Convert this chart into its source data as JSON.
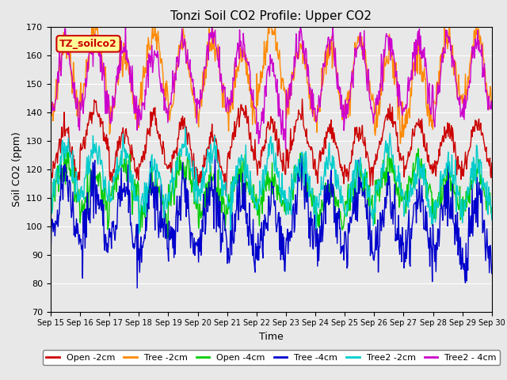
{
  "title": "Tonzi Soil CO2 Profile: Upper CO2",
  "xlabel": "Time",
  "ylabel": "Soil CO2 (ppm)",
  "ylim": [
    70,
    170
  ],
  "yticks": [
    70,
    80,
    90,
    100,
    110,
    120,
    130,
    140,
    150,
    160,
    170
  ],
  "annotation": "TZ_soilco2",
  "background_color": "#e8e8e8",
  "plot_bg": "#e8e8e8",
  "legend": [
    "Open -2cm",
    "Tree -2cm",
    "Open -4cm",
    "Tree -4cm",
    "Tree2 -2cm",
    "Tree2 - 4cm"
  ],
  "colors": [
    "#cc0000",
    "#ff8800",
    "#00cc00",
    "#0000cc",
    "#00cccc",
    "#cc00cc"
  ],
  "n_days": 15,
  "n_per_day": 48,
  "means": [
    128,
    152,
    113,
    103,
    116,
    152
  ],
  "amplitudes": [
    8,
    12,
    6,
    10,
    8,
    12
  ],
  "noise_scales": [
    2,
    3,
    3,
    5,
    3,
    3
  ],
  "x_tick_labels": [
    "Sep 15",
    "Sep 16",
    "Sep 17",
    "Sep 18",
    "Sep 19",
    "Sep 20",
    "Sep 21",
    "Sep 22",
    "Sep 23",
    "Sep 24",
    "Sep 25",
    "Sep 26",
    "Sep 27",
    "Sep 28",
    "Sep 29",
    "Sep 30"
  ],
  "linewidth": 1.0,
  "figsize": [
    6.4,
    4.8
  ],
  "dpi": 100
}
